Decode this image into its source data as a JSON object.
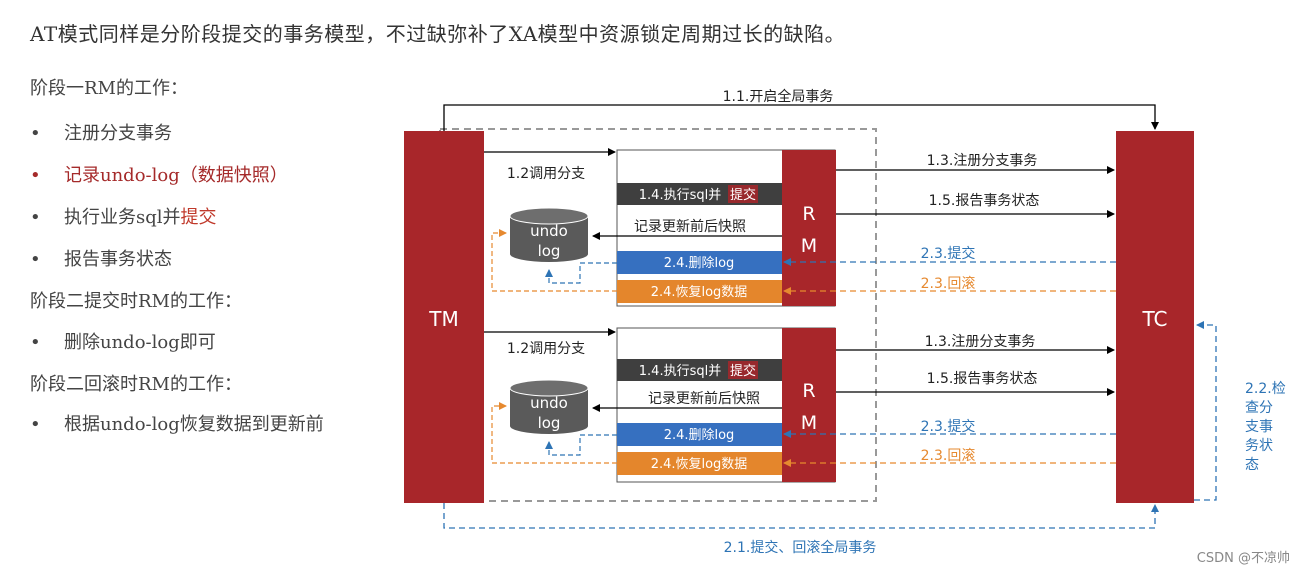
{
  "headline": "AT模式同样是分阶段提交的事务模型，不过缺弥补了XA模型中资源锁定周期过长的缺陷。",
  "phase1_title": "阶段一RM的工作：",
  "phase1_items": [
    "注册分支事务",
    "记录undo-log（数据快照）",
    "执行业务sql并",
    "报告事务状态"
  ],
  "phase1_item3_accent": "提交",
  "phase2_title": "阶段二提交时RM的工作：",
  "phase2_items": [
    "删除undo-log即可"
  ],
  "phase3_title": "阶段二回滚时RM的工作：",
  "phase3_items": [
    "根据undo-log恢复数据到更新前"
  ],
  "bullet_symbol": "•",
  "diagram": {
    "tm_label": "TM",
    "tc_label": "TC",
    "rm_label_line1": "R",
    "rm_label_line2": "M",
    "undo_line1": "undo",
    "undo_line2": "log",
    "start_global": "1.1.开启全局事务",
    "call_branch": "1.2调用分支",
    "exec_sql_prefix": "1.4.执行sql并",
    "exec_sql_accent": "提交",
    "record_snapshot": "记录更新前后快照",
    "delete_log": "2.4.删除log",
    "restore_log": "2.4.恢复log数据",
    "register_branch": "1.3.注册分支事务",
    "report_status": "1.5.报告事务状态",
    "commit_label": "2.3.提交",
    "rollback_label": "2.3.回滚",
    "check_status": [
      "2.2.检",
      "查分",
      "支事",
      "务状",
      "态"
    ],
    "global_commit": "2.1.提交、回滚全局事务"
  },
  "watermark": "CSDN @不凉帅",
  "colors": {
    "dark_red": "#a8262a",
    "blue": "#2e74b5",
    "blue_box": "#3670c0",
    "orange": "#e6892f",
    "orange_box": "#e4862c",
    "dark_box": "#3f3f3f",
    "cylinder": "#5a5a5a",
    "dashed_gray": "#999999"
  }
}
